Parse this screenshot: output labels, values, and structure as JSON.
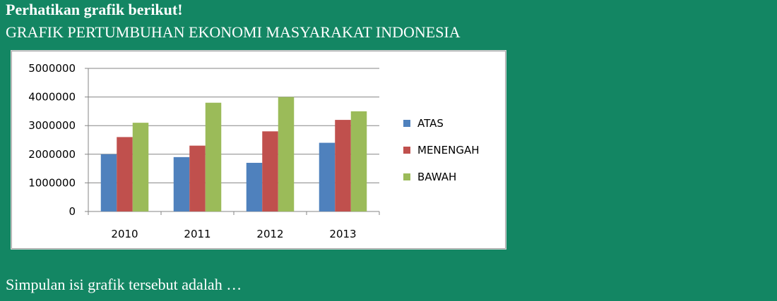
{
  "page": {
    "heading": "Perhatikan grafik berikut!",
    "subtitle": "GRAFIK PERTUMBUHAN EKONOMI MASYARAKAT INDONESIA",
    "question": "Simpulan isi grafik tersebut adalah …"
  },
  "colors": {
    "background": "#138663",
    "series": [
      "#4F81BD",
      "#C0504D",
      "#9BBB59"
    ]
  },
  "chart_data": {
    "type": "bar",
    "title": "",
    "xlabel": "",
    "ylabel": "",
    "categories": [
      "2010",
      "2011",
      "2012",
      "2013"
    ],
    "series": [
      {
        "name": "ATAS",
        "values": [
          2000000,
          1900000,
          1700000,
          2400000
        ]
      },
      {
        "name": "MENENGAH",
        "values": [
          2600000,
          2300000,
          2800000,
          3200000
        ]
      },
      {
        "name": "BAWAH",
        "values": [
          3100000,
          3800000,
          4000000,
          3500000
        ]
      }
    ],
    "ylim": [
      0,
      5000000
    ],
    "yticks": [
      "0",
      "1000000",
      "2000000",
      "3000000",
      "4000000",
      "5000000"
    ],
    "grid": true,
    "legend_position": "right"
  }
}
